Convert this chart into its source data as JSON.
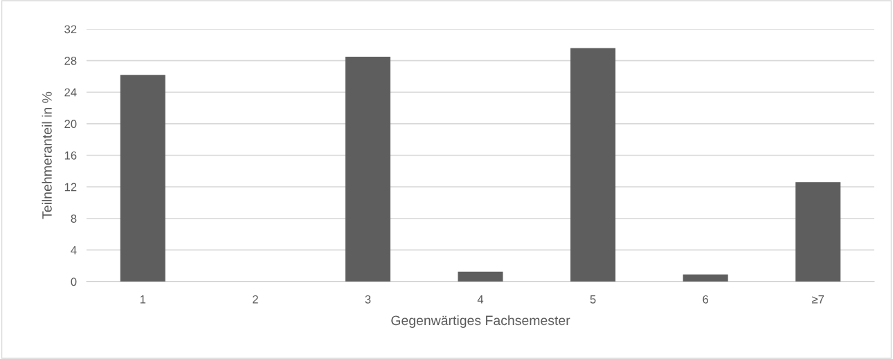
{
  "chart_data": {
    "type": "bar",
    "xlabel": "Gegenwärtiges Fachsemester",
    "ylabel": "Teilnehmeranteil in %",
    "categories": [
      "1",
      "2",
      "3",
      "4",
      "5",
      "6",
      "≥7"
    ],
    "values": [
      26.2,
      0,
      28.5,
      1.25,
      29.6,
      0.9,
      12.6
    ],
    "color": "#5e5e5e",
    "ylim": [
      0,
      32
    ],
    "yticks": [
      0,
      4,
      8,
      12,
      16,
      20,
      24,
      28,
      32
    ],
    "grid": "y"
  }
}
